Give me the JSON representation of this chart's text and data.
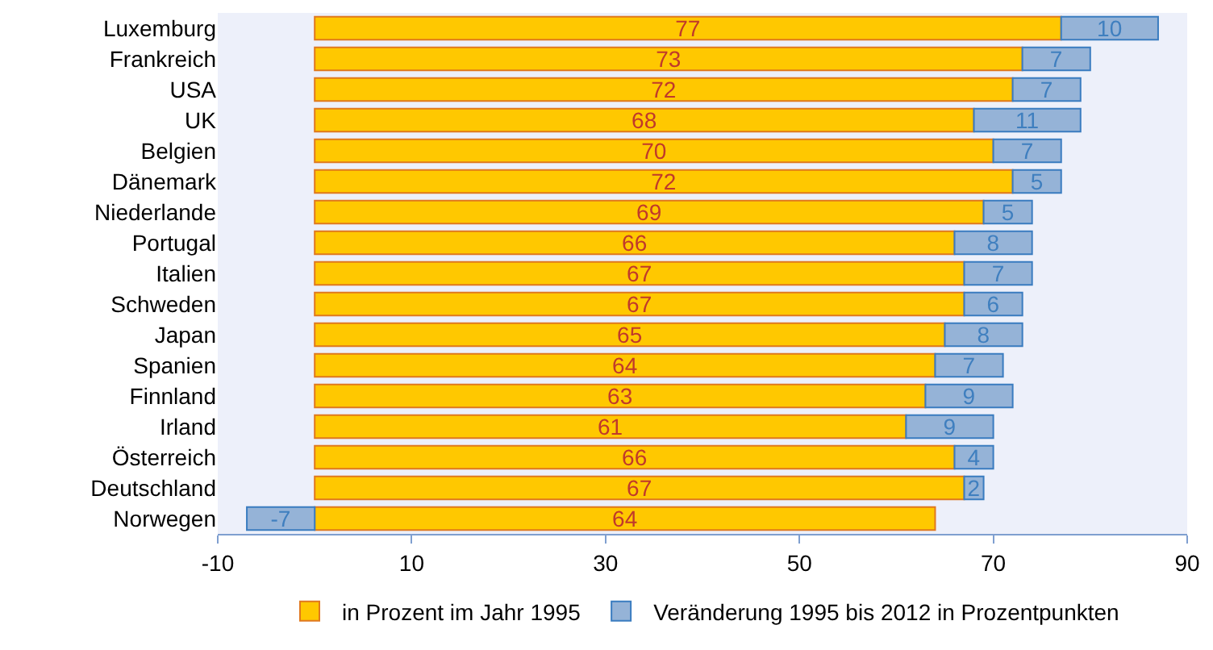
{
  "chart_data": {
    "type": "bar",
    "orientation": "horizontal",
    "stacked": true,
    "data_labels": true,
    "legend": "bottom",
    "categories": [
      "Luxemburg",
      "Frankreich",
      "USA",
      "UK",
      "Belgien",
      "Dänemark",
      "Niederlande",
      "Portugal",
      "Italien",
      "Schweden",
      "Japan",
      "Spanien",
      "Finnland",
      "Irland",
      "Österreich",
      "Deutschland",
      "Norwegen"
    ],
    "series": [
      {
        "name": "in Prozent im Jahr 1995",
        "color": "#ffc800",
        "values": [
          77,
          73,
          72,
          68,
          70,
          72,
          69,
          66,
          67,
          67,
          65,
          64,
          63,
          61,
          66,
          67,
          64
        ]
      },
      {
        "name": "Veränderung 1995 bis 2012 in Prozentpunkten",
        "color": "#95b3d7",
        "values": [
          10,
          7,
          7,
          11,
          7,
          5,
          5,
          8,
          7,
          6,
          8,
          7,
          9,
          9,
          4,
          2,
          -7
        ]
      }
    ],
    "xlim": [
      -10,
      90
    ],
    "xticks": [
      -10,
      10,
      30,
      50,
      70,
      90
    ]
  }
}
